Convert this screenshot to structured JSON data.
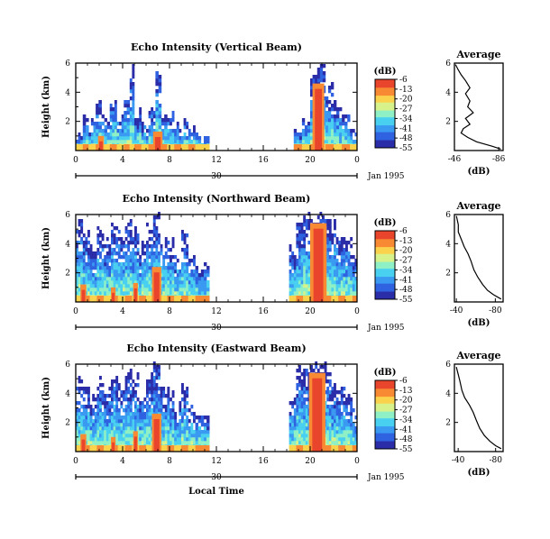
{
  "figure": {
    "x_axis_label": "Local Time",
    "colormap": [
      "#2a2ca8",
      "#2f62e0",
      "#3a9af2",
      "#49d0f0",
      "#8ff0c6",
      "#d7f28a",
      "#fbd24c",
      "#f98a34",
      "#e9452c"
    ]
  },
  "chart_data": [
    {
      "id": "vertical",
      "type": "heatmap",
      "title": "Echo Intensity (Vertical Beam)",
      "ylabel": "Height (km)",
      "ylim": [
        0,
        6
      ],
      "yticks": [
        "2",
        "4",
        "6"
      ],
      "xticks": [
        "0",
        "4",
        "8",
        "12",
        "16",
        "20",
        "0"
      ],
      "date_tick": "30",
      "date_label": "Jan 1995",
      "colorbar": {
        "unit": "(dB)",
        "ticks": [
          "-6",
          "-13",
          "-20",
          "-27",
          "-34",
          "-41",
          "-48",
          "-55"
        ],
        "range": [
          -55,
          -6
        ]
      },
      "echo_cells": [
        {
          "time": [
            0.0,
            0.6
          ],
          "top": 1.2
        },
        {
          "time": [
            0.6,
            1.1
          ],
          "top": 2.6
        },
        {
          "time": [
            1.1,
            1.7
          ],
          "top": 1.6
        },
        {
          "time": [
            1.7,
            2.2
          ],
          "top": 3.0
        },
        {
          "time": [
            2.2,
            2.9
          ],
          "top": 2.2
        },
        {
          "time": [
            2.9,
            3.5
          ],
          "top": 3.5
        },
        {
          "time": [
            3.5,
            4.1
          ],
          "top": 2.4
        },
        {
          "time": [
            4.1,
            4.6
          ],
          "top": 3.6
        },
        {
          "time": [
            4.6,
            5.0
          ],
          "top": 5.5
        },
        {
          "time": [
            5.0,
            5.6
          ],
          "top": 2.4
        },
        {
          "time": [
            5.6,
            6.2
          ],
          "top": 2.0
        },
        {
          "time": [
            6.2,
            6.8
          ],
          "top": 2.6
        },
        {
          "time": [
            6.8,
            7.3
          ],
          "top": 5.4
        },
        {
          "time": [
            7.3,
            7.8
          ],
          "top": 2.2
        },
        {
          "time": [
            7.8,
            8.4
          ],
          "top": 2.6
        },
        {
          "time": [
            8.4,
            9.0
          ],
          "top": 1.5
        },
        {
          "time": [
            9.0,
            9.6
          ],
          "top": 1.8
        },
        {
          "time": [
            9.6,
            10.2
          ],
          "top": 1.2
        },
        {
          "time": [
            10.2,
            11.4
          ],
          "top": 0.8
        },
        {
          "time": [
            18.6,
            19.3
          ],
          "top": 1.3
        },
        {
          "time": [
            19.3,
            20.0
          ],
          "top": 2.1
        },
        {
          "time": [
            20.0,
            20.6
          ],
          "top": 5.2
        },
        {
          "time": [
            20.6,
            21.3
          ],
          "top": 5.7
        },
        {
          "time": [
            21.3,
            22.0
          ],
          "top": 4.6
        },
        {
          "time": [
            22.0,
            22.7
          ],
          "top": 3.2
        },
        {
          "time": [
            22.7,
            23.4
          ],
          "top": 2.3
        },
        {
          "time": [
            23.4,
            24.0
          ],
          "top": 1.3
        }
      ],
      "cores": [
        {
          "time": [
            6.6,
            7.4
          ],
          "top": 1.3
        },
        {
          "time": [
            20.2,
            21.2
          ],
          "top": 4.6
        },
        {
          "time": [
            1.9,
            2.4
          ],
          "top": 1.0
        }
      ],
      "average": {
        "title": "Average",
        "xlabel": "(dB)",
        "xticks": [
          "-46",
          "-86"
        ],
        "xlim": [
          -46,
          -90
        ],
        "ylim": [
          0,
          6
        ],
        "yticks": [
          "2",
          "4",
          "6"
        ],
        "profile": [
          {
            "db": -88,
            "h": 0.1
          },
          {
            "db": -80,
            "h": 0.3
          },
          {
            "db": -66,
            "h": 0.6
          },
          {
            "db": -58,
            "h": 0.9
          },
          {
            "db": -52,
            "h": 1.2
          },
          {
            "db": -54,
            "h": 1.5
          },
          {
            "db": -60,
            "h": 1.8
          },
          {
            "db": -56,
            "h": 2.2
          },
          {
            "db": -63,
            "h": 2.6
          },
          {
            "db": -58,
            "h": 3.0
          },
          {
            "db": -60,
            "h": 3.4
          },
          {
            "db": -56,
            "h": 3.9
          },
          {
            "db": -60,
            "h": 4.3
          },
          {
            "db": -56,
            "h": 4.8
          },
          {
            "db": -52,
            "h": 5.2
          },
          {
            "db": -49,
            "h": 5.6
          },
          {
            "db": -47,
            "h": 5.9
          }
        ]
      }
    },
    {
      "id": "northward",
      "type": "heatmap",
      "title": "Echo Intensity (Northward Beam)",
      "ylabel": "Height (km)",
      "ylim": [
        0,
        6
      ],
      "yticks": [
        "2",
        "4",
        "6"
      ],
      "xticks": [
        "0",
        "4",
        "8",
        "12",
        "16",
        "20",
        "0"
      ],
      "date_tick": "30",
      "date_label": "Jan 1995",
      "colorbar": {
        "unit": "(dB)",
        "ticks": [
          "-6",
          "-13",
          "-20",
          "-27",
          "-34",
          "-41",
          "-48",
          "-55"
        ],
        "range": [
          -55,
          -6
        ]
      },
      "echo_cells": [
        {
          "time": [
            0.0,
            0.6
          ],
          "top": 5.4
        },
        {
          "time": [
            0.6,
            1.2
          ],
          "top": 4.8
        },
        {
          "time": [
            1.2,
            1.8
          ],
          "top": 3.8
        },
        {
          "time": [
            1.8,
            2.4
          ],
          "top": 5.0
        },
        {
          "time": [
            2.4,
            3.0
          ],
          "top": 4.2
        },
        {
          "time": [
            3.0,
            3.6
          ],
          "top": 5.2
        },
        {
          "time": [
            3.6,
            4.2
          ],
          "top": 4.5
        },
        {
          "time": [
            4.2,
            4.8
          ],
          "top": 5.7
        },
        {
          "time": [
            4.8,
            5.4
          ],
          "top": 5.0
        },
        {
          "time": [
            5.4,
            6.0
          ],
          "top": 3.8
        },
        {
          "time": [
            6.0,
            6.6
          ],
          "top": 5.2
        },
        {
          "time": [
            6.6,
            7.2
          ],
          "top": 6.0
        },
        {
          "time": [
            7.2,
            7.8
          ],
          "top": 4.6
        },
        {
          "time": [
            7.8,
            8.4
          ],
          "top": 4.0
        },
        {
          "time": [
            8.4,
            9.0
          ],
          "top": 3.0
        },
        {
          "time": [
            9.0,
            9.6
          ],
          "top": 4.6
        },
        {
          "time": [
            9.6,
            10.2
          ],
          "top": 3.2
        },
        {
          "time": [
            10.2,
            11.4
          ],
          "top": 2.4
        },
        {
          "time": [
            18.2,
            18.8
          ],
          "top": 3.4
        },
        {
          "time": [
            18.8,
            19.4
          ],
          "top": 5.4
        },
        {
          "time": [
            19.4,
            20.0
          ],
          "top": 5.8
        },
        {
          "time": [
            20.0,
            20.6
          ],
          "top": 5.6
        },
        {
          "time": [
            20.6,
            21.2
          ],
          "top": 6.0
        },
        {
          "time": [
            21.2,
            21.8
          ],
          "top": 5.8
        },
        {
          "time": [
            21.8,
            22.4
          ],
          "top": 5.2
        },
        {
          "time": [
            22.4,
            23.0
          ],
          "top": 4.6
        },
        {
          "time": [
            23.0,
            23.6
          ],
          "top": 4.6
        },
        {
          "time": [
            23.6,
            24.0
          ],
          "top": 3.0
        }
      ],
      "cores": [
        {
          "time": [
            6.5,
            7.3
          ],
          "top": 2.4
        },
        {
          "time": [
            20.0,
            21.4
          ],
          "top": 5.4
        },
        {
          "time": [
            0.4,
            0.9
          ],
          "top": 1.2
        },
        {
          "time": [
            3.0,
            3.4
          ],
          "top": 1.0
        },
        {
          "time": [
            4.9,
            5.3
          ],
          "top": 1.3
        }
      ],
      "average": {
        "title": "Average",
        "xlabel": "(dB)",
        "xticks": [
          "-40",
          "-80"
        ],
        "xlim": [
          -38,
          -88
        ],
        "ylim": [
          0,
          6
        ],
        "yticks": [
          "2",
          "4",
          "6"
        ],
        "profile": [
          {
            "db": -86,
            "h": 0.2
          },
          {
            "db": -78,
            "h": 0.5
          },
          {
            "db": -72,
            "h": 0.8
          },
          {
            "db": -67,
            "h": 1.2
          },
          {
            "db": -62,
            "h": 1.7
          },
          {
            "db": -58,
            "h": 2.2
          },
          {
            "db": -55,
            "h": 2.8
          },
          {
            "db": -52,
            "h": 3.3
          },
          {
            "db": -48,
            "h": 3.8
          },
          {
            "db": -45,
            "h": 4.3
          },
          {
            "db": -42,
            "h": 4.8
          },
          {
            "db": -42,
            "h": 5.3
          },
          {
            "db": -40,
            "h": 5.9
          }
        ]
      }
    },
    {
      "id": "eastward",
      "type": "heatmap",
      "title": "Echo Intensity (Eastward Beam)",
      "ylabel": "Height (km)",
      "ylim": [
        0,
        6
      ],
      "yticks": [
        "2",
        "4",
        "6"
      ],
      "xticks": [
        "0",
        "4",
        "8",
        "12",
        "16",
        "20",
        "0"
      ],
      "date_tick": "30",
      "date_label": "Jan 1995",
      "colorbar": {
        "unit": "(dB)",
        "ticks": [
          "-6",
          "-13",
          "-20",
          "-27",
          "-34",
          "-41",
          "-48",
          "-55"
        ],
        "range": [
          -55,
          -6
        ]
      },
      "echo_cells": [
        {
          "time": [
            0.0,
            0.6
          ],
          "top": 4.8
        },
        {
          "time": [
            0.6,
            1.2
          ],
          "top": 4.2
        },
        {
          "time": [
            1.2,
            1.8
          ],
          "top": 3.4
        },
        {
          "time": [
            1.8,
            2.4
          ],
          "top": 4.8
        },
        {
          "time": [
            2.4,
            3.0
          ],
          "top": 4.0
        },
        {
          "time": [
            3.0,
            3.6
          ],
          "top": 5.0
        },
        {
          "time": [
            3.6,
            4.2
          ],
          "top": 4.6
        },
        {
          "time": [
            4.2,
            4.8
          ],
          "top": 5.4
        },
        {
          "time": [
            4.8,
            5.4
          ],
          "top": 4.8
        },
        {
          "time": [
            5.4,
            6.0
          ],
          "top": 3.6
        },
        {
          "time": [
            6.0,
            6.6
          ],
          "top": 5.0
        },
        {
          "time": [
            6.6,
            7.2
          ],
          "top": 5.8
        },
        {
          "time": [
            7.2,
            7.8
          ],
          "top": 4.4
        },
        {
          "time": [
            7.8,
            8.4
          ],
          "top": 4.0
        },
        {
          "time": [
            8.4,
            9.0
          ],
          "top": 2.8
        },
        {
          "time": [
            9.0,
            9.6
          ],
          "top": 4.2
        },
        {
          "time": [
            9.6,
            10.2
          ],
          "top": 2.8
        },
        {
          "time": [
            10.2,
            11.4
          ],
          "top": 2.2
        },
        {
          "time": [
            18.2,
            18.8
          ],
          "top": 3.4
        },
        {
          "time": [
            18.8,
            19.4
          ],
          "top": 5.6
        },
        {
          "time": [
            19.4,
            20.0
          ],
          "top": 5.2
        },
        {
          "time": [
            20.0,
            20.6
          ],
          "top": 6.0
        },
        {
          "time": [
            20.6,
            21.2
          ],
          "top": 5.8
        },
        {
          "time": [
            21.2,
            21.8
          ],
          "top": 5.6
        },
        {
          "time": [
            21.8,
            22.4
          ],
          "top": 4.6
        },
        {
          "time": [
            22.4,
            23.0
          ],
          "top": 4.2
        },
        {
          "time": [
            23.0,
            23.6
          ],
          "top": 4.0
        },
        {
          "time": [
            23.6,
            24.0
          ],
          "top": 2.6
        }
      ],
      "cores": [
        {
          "time": [
            6.5,
            7.3
          ],
          "top": 2.6
        },
        {
          "time": [
            19.9,
            21.3
          ],
          "top": 5.4
        },
        {
          "time": [
            0.4,
            0.9
          ],
          "top": 1.2
        },
        {
          "time": [
            3.0,
            3.4
          ],
          "top": 1.0
        },
        {
          "time": [
            4.9,
            5.3
          ],
          "top": 1.4
        }
      ],
      "average": {
        "title": "Average",
        "xlabel": "(dB)",
        "xticks": [
          "-40",
          "-80"
        ],
        "xlim": [
          -36,
          -88
        ],
        "ylim": [
          0,
          6
        ],
        "yticks": [
          "2",
          "4",
          "6"
        ],
        "profile": [
          {
            "db": -86,
            "h": 0.2
          },
          {
            "db": -80,
            "h": 0.4
          },
          {
            "db": -74,
            "h": 0.7
          },
          {
            "db": -68,
            "h": 1.1
          },
          {
            "db": -63,
            "h": 1.6
          },
          {
            "db": -59,
            "h": 2.2
          },
          {
            "db": -56,
            "h": 2.7
          },
          {
            "db": -52,
            "h": 3.2
          },
          {
            "db": -47,
            "h": 3.7
          },
          {
            "db": -44,
            "h": 4.2
          },
          {
            "db": -42,
            "h": 4.8
          },
          {
            "db": -40,
            "h": 5.3
          },
          {
            "db": -38,
            "h": 5.8
          }
        ]
      }
    }
  ]
}
